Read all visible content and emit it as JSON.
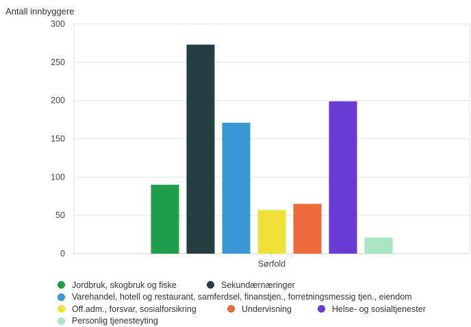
{
  "chart_data": {
    "type": "bar",
    "ylabel": "Antall innbyggere",
    "xlabel": "",
    "categories": [
      "Sørfold"
    ],
    "ylim": [
      0,
      300
    ],
    "yticks": [
      0,
      50,
      100,
      150,
      200,
      250,
      300
    ],
    "grid": true,
    "legend_position": "bottom",
    "series": [
      {
        "name": "Jordbruk, skogbruk og fiske",
        "values": [
          90
        ],
        "color": "#1e9e4a"
      },
      {
        "name": "Sekundærnæringer",
        "values": [
          273
        ],
        "color": "#243e42"
      },
      {
        "name": "Varehandel, hotell og restaurant, samferdsel, finanstjen., forretningsmessig tjen., eiendom",
        "values": [
          171
        ],
        "color": "#3a97d6"
      },
      {
        "name": "Off.adm., forsvar, sosialforsikring",
        "values": [
          57
        ],
        "color": "#f0e13a"
      },
      {
        "name": "Undervisning",
        "values": [
          65
        ],
        "color": "#ef6a3b"
      },
      {
        "name": "Helse- og sosialtjenester",
        "values": [
          199
        ],
        "color": "#6a3ad4"
      },
      {
        "name": "Personlig tjenesteyting",
        "values": [
          21
        ],
        "color": "#a9e6c2"
      }
    ]
  }
}
